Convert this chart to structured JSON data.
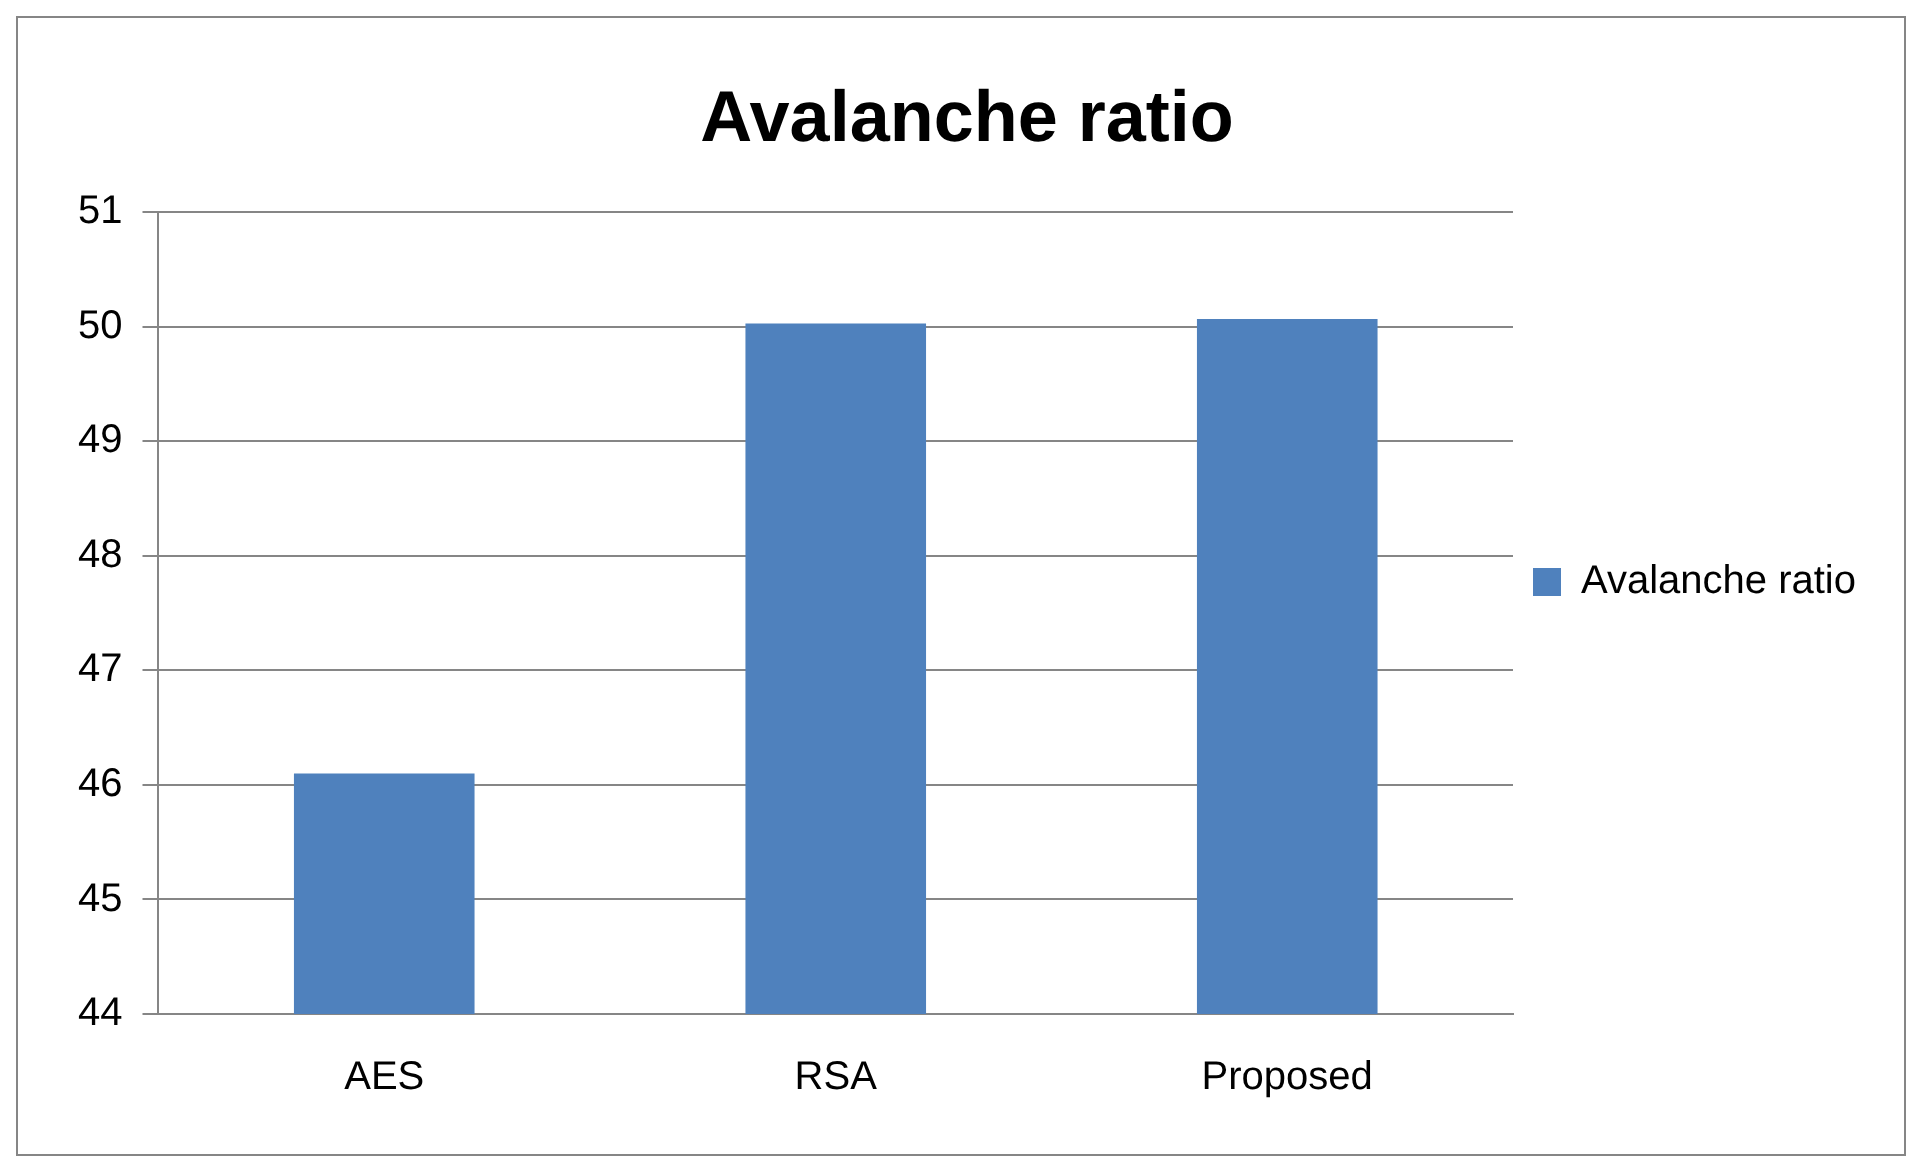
{
  "chart_data": {
    "type": "bar",
    "title": "Avalanche ratio",
    "categories": [
      "AES",
      "RSA",
      "Proposed"
    ],
    "series": [
      {
        "name": "Avalanche ratio",
        "color": "#4f81bd",
        "values": [
          46.1,
          50.03,
          50.07
        ]
      }
    ],
    "ylim": [
      44,
      51
    ],
    "yticks": [
      44,
      45,
      46,
      47,
      48,
      49,
      50,
      51
    ],
    "grid": "y",
    "legend": "right"
  }
}
